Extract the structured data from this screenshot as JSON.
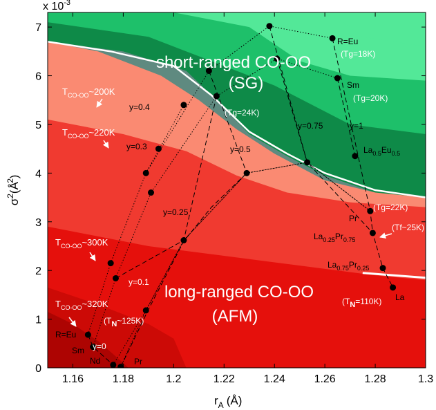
{
  "chart_data": {
    "type": "area",
    "title": "",
    "xlabel": "r",
    "xlabel_sub": "A",
    "xlabel_unit": "(Å)",
    "ylabel": "σ",
    "ylabel_sup": "2",
    "ylabel_unit": "(Å )",
    "ylabel_sup2": "2",
    "y_multiplier": "x 10",
    "y_multiplier_exp": "-3",
    "xlim": [
      1.15,
      1.3
    ],
    "ylim": [
      0,
      7.3
    ],
    "x_ticks": [
      "1.16",
      "1.18",
      "1.2",
      "1.22",
      "1.24",
      "1.26",
      "1.28",
      "1.3"
    ],
    "x_tick_values": [
      1.16,
      1.18,
      1.2,
      1.22,
      1.24,
      1.26,
      1.28,
      1.3
    ],
    "y_ticks": [
      "0",
      "1",
      "2",
      "3",
      "4",
      "5",
      "6",
      "7"
    ],
    "y_tick_values": [
      0,
      1,
      2,
      3,
      4,
      5,
      6,
      7
    ],
    "grid": false,
    "colors": {
      "sg_light": "#53e898",
      "sg_mid": "#1ec06a",
      "sg_dark": "#0e8a48",
      "glassy": "#5f8a80",
      "salmon": "#fa8a72",
      "red_light": "#f03a30",
      "red_mid": "#e5100c",
      "red_dark": "#cc0a06",
      "red_darkest": "#ad0402",
      "boundary": "#ffffff"
    },
    "regions": [
      {
        "name": "sg_light",
        "boundary": [
          [
            1.262,
            7.3
          ],
          [
            1.275,
            6.8
          ],
          [
            1.3,
            6.6
          ]
        ]
      },
      {
        "name": "sg_mid",
        "boundary": [
          [
            1.2,
            7.3
          ],
          [
            1.23,
            7.0
          ],
          [
            1.25,
            6.3
          ],
          [
            1.27,
            6.0
          ],
          [
            1.3,
            5.9
          ]
        ]
      },
      {
        "name": "sg_dark",
        "boundary": [
          [
            1.15,
            7.1
          ],
          [
            1.19,
            6.8
          ],
          [
            1.215,
            6.3
          ],
          [
            1.24,
            5.8
          ],
          [
            1.27,
            5.0
          ],
          [
            1.3,
            4.8
          ]
        ]
      },
      {
        "name": "glassy",
        "boundary": [
          [
            1.15,
            6.7
          ],
          [
            1.18,
            6.5
          ],
          [
            1.205,
            6.1
          ],
          [
            1.215,
            5.6
          ],
          [
            1.23,
            4.8
          ],
          [
            1.245,
            4.35
          ],
          [
            1.26,
            3.95
          ],
          [
            1.28,
            3.6
          ],
          [
            1.3,
            3.4
          ]
        ]
      },
      {
        "name": "salmon",
        "boundary": [
          [
            1.15,
            6.7
          ],
          [
            1.17,
            6.5
          ],
          [
            1.195,
            6.0
          ],
          [
            1.21,
            5.5
          ],
          [
            1.225,
            4.9
          ],
          [
            1.24,
            4.4
          ],
          [
            1.26,
            3.85
          ],
          [
            1.28,
            3.6
          ],
          [
            1.3,
            3.5
          ]
        ]
      },
      {
        "name": "red_light",
        "boundary": [
          [
            1.15,
            5.1
          ],
          [
            1.18,
            4.8
          ],
          [
            1.205,
            4.45
          ],
          [
            1.225,
            3.95
          ],
          [
            1.245,
            3.6
          ],
          [
            1.27,
            3.4
          ],
          [
            1.3,
            3.3
          ]
        ]
      },
      {
        "name": "red_mid",
        "boundary": [
          [
            1.15,
            2.9
          ],
          [
            1.19,
            2.5
          ],
          [
            1.22,
            2.3
          ],
          [
            1.25,
            2.1
          ],
          [
            1.28,
            1.9
          ],
          [
            1.3,
            1.8
          ]
        ]
      },
      {
        "name": "red_dark",
        "boundary": [
          [
            1.15,
            1.65
          ],
          [
            1.17,
            1.3
          ],
          [
            1.19,
            0.9
          ],
          [
            1.2,
            0.6
          ],
          [
            1.205,
            0.0
          ]
        ]
      },
      {
        "name": "red_darkest",
        "boundary": [
          [
            1.15,
            1.15
          ],
          [
            1.16,
            0.9
          ],
          [
            1.17,
            0.55
          ],
          [
            1.18,
            0.1
          ],
          [
            1.182,
            0.0
          ]
        ]
      }
    ],
    "white_boundary": [
      [
        1.15,
        6.7
      ],
      [
        1.175,
        6.5
      ],
      [
        1.2,
        6.2
      ],
      [
        1.215,
        5.6
      ],
      [
        1.23,
        4.85
      ],
      [
        1.245,
        4.4
      ],
      [
        1.26,
        4.0
      ],
      [
        1.28,
        3.65
      ],
      [
        1.3,
        3.5
      ]
    ],
    "white_boundary_lower": [
      [
        1.275,
        1.95
      ],
      [
        1.3,
        1.85
      ]
    ],
    "series": [
      {
        "points": [
          [
            1.166,
            0.68
          ],
          [
            1.168,
            0.43
          ],
          [
            1.176,
            0.06
          ],
          [
            1.179,
            0.02
          ]
        ],
        "style": "dashed"
      },
      {
        "points": [
          [
            1.166,
            0.68
          ],
          [
            1.175,
            2.15
          ],
          [
            1.189,
            4.0
          ],
          [
            1.214,
            6.1
          ],
          [
            1.238,
            7.02
          ],
          [
            1.263,
            6.77
          ]
        ],
        "style": "dotted"
      },
      {
        "points": [
          [
            1.168,
            0.43
          ],
          [
            1.177,
            1.84
          ],
          [
            1.191,
            3.6
          ],
          [
            1.217,
            5.58
          ],
          [
            1.241,
            6.35
          ],
          [
            1.265,
            5.95
          ]
        ],
        "style": "dotted"
      },
      {
        "points": [
          [
            1.176,
            0.06
          ],
          [
            1.189,
            1.18
          ],
          [
            1.204,
            2.62
          ],
          [
            1.229,
            4.0
          ],
          [
            1.253,
            4.22
          ],
          [
            1.278,
            3.22
          ]
        ],
        "style": "dotted"
      },
      {
        "points": [
          [
            1.179,
            0.02
          ],
          [
            1.189,
            1.18
          ],
          [
            1.204,
            2.62
          ],
          [
            1.229,
            4.0
          ],
          [
            1.253,
            4.22
          ],
          [
            1.278,
            3.22
          ]
        ],
        "style": "dotted"
      },
      {
        "points": [
          [
            1.179,
            0.02
          ],
          [
            1.19,
            1.2
          ],
          [
            1.204,
            2.6
          ],
          [
            1.215,
            3.3
          ],
          [
            1.229,
            4.0
          ]
        ],
        "style": "dashed"
      },
      {
        "points": [
          [
            1.177,
            1.84
          ],
          [
            1.204,
            2.62
          ]
        ],
        "style": "dashed"
      },
      {
        "points": [
          [
            1.189,
            4.0
          ],
          [
            1.204,
            5.4
          ]
        ],
        "style": "dotted"
      },
      {
        "points": [
          [
            1.238,
            7.02
          ],
          [
            1.253,
            4.22
          ],
          [
            1.279,
            2.77
          ],
          [
            1.283,
            2.05
          ],
          [
            1.287,
            1.65
          ]
        ],
        "style": "dashed"
      },
      {
        "points": [
          [
            1.263,
            6.77
          ],
          [
            1.278,
            3.22
          ],
          [
            1.279,
            2.77
          ]
        ],
        "style": "dashed"
      },
      {
        "points": [
          [
            1.214,
            6.1
          ],
          [
            1.229,
            4.0
          ]
        ],
        "style": "dashed"
      },
      {
        "points": [
          [
            1.217,
            5.58
          ],
          [
            1.204,
            2.62
          ]
        ],
        "style": "dashed"
      },
      {
        "points": [
          [
            1.241,
            6.35
          ],
          [
            1.253,
            4.22
          ]
        ],
        "style": "dashed"
      },
      {
        "points": [
          [
            1.265,
            5.95
          ],
          [
            1.272,
            4.35
          ]
        ],
        "style": "dashed"
      }
    ],
    "points": [
      [
        1.166,
        0.68
      ],
      [
        1.168,
        0.43
      ],
      [
        1.176,
        0.06
      ],
      [
        1.179,
        0.02
      ],
      [
        1.175,
        2.15
      ],
      [
        1.177,
        1.84
      ],
      [
        1.189,
        1.18
      ],
      [
        1.189,
        4.0
      ],
      [
        1.191,
        3.6
      ],
      [
        1.204,
        2.62
      ],
      [
        1.194,
        4.5
      ],
      [
        1.204,
        5.4
      ],
      [
        1.214,
        6.1
      ],
      [
        1.217,
        5.58
      ],
      [
        1.229,
        4.0
      ],
      [
        1.238,
        7.02
      ],
      [
        1.241,
        6.35
      ],
      [
        1.253,
        4.22
      ],
      [
        1.263,
        6.77
      ],
      [
        1.265,
        5.95
      ],
      [
        1.272,
        4.35
      ],
      [
        1.278,
        3.22
      ],
      [
        1.279,
        2.77
      ],
      [
        1.283,
        2.05
      ],
      [
        1.287,
        1.65
      ]
    ],
    "annotations": {
      "sg_title_1": "short-ranged CO-OO",
      "sg_title_2": "(SG)",
      "afm_title_1": "long-ranged CO-OO",
      "afm_title_2": "(AFM)",
      "t200": {
        "main": "T",
        "sub": "CO-OO",
        "rest": "~200K"
      },
      "t220": {
        "main": "T",
        "sub": "CO-OO",
        "rest": "~220K"
      },
      "t300": {
        "main": "T",
        "sub": "CO-OO",
        "rest": "~300K"
      },
      "t320": {
        "main": "T",
        "sub": "CO-OO",
        "rest": "~320K"
      },
      "y04": "y=0.4",
      "y03": "y=0.3",
      "y025": "y=0.25",
      "y01": "y=0.1",
      "y0": "y=0",
      "y05": "y=0.5",
      "y075": "y=0.75",
      "y1": "y=1",
      "r_eu_top": "R=Eu",
      "tg18": "(Tg=18K)",
      "sm_top": "Sm",
      "tg20": "(Tg=20K)",
      "tg24": "(Tg=24K)",
      "la_eu": {
        "a": "La",
        "b": "0.5",
        "c": "Eu",
        "d": "0.5"
      },
      "pr_right": "Pr",
      "tg22": "(Tg=22K)",
      "tf25": "(Tf~25K)",
      "la_pr_1": {
        "a": "La",
        "b": "0.25",
        "c": "Pr",
        "d": "0.75"
      },
      "la_pr_2": {
        "a": "La",
        "b": "0.75",
        "c": "Pr",
        "d": "0.25"
      },
      "tn110": {
        "a": "(T",
        "b": "N",
        "c": "=110K)"
      },
      "la_right": "La",
      "tn125": {
        "a": "(T",
        "b": "N",
        "c": "~125K)"
      },
      "r_eu_bottom": "R=Eu",
      "sm_bottom": "Sm",
      "nd_bottom": "Nd",
      "pr_bottom": "Pr"
    }
  }
}
